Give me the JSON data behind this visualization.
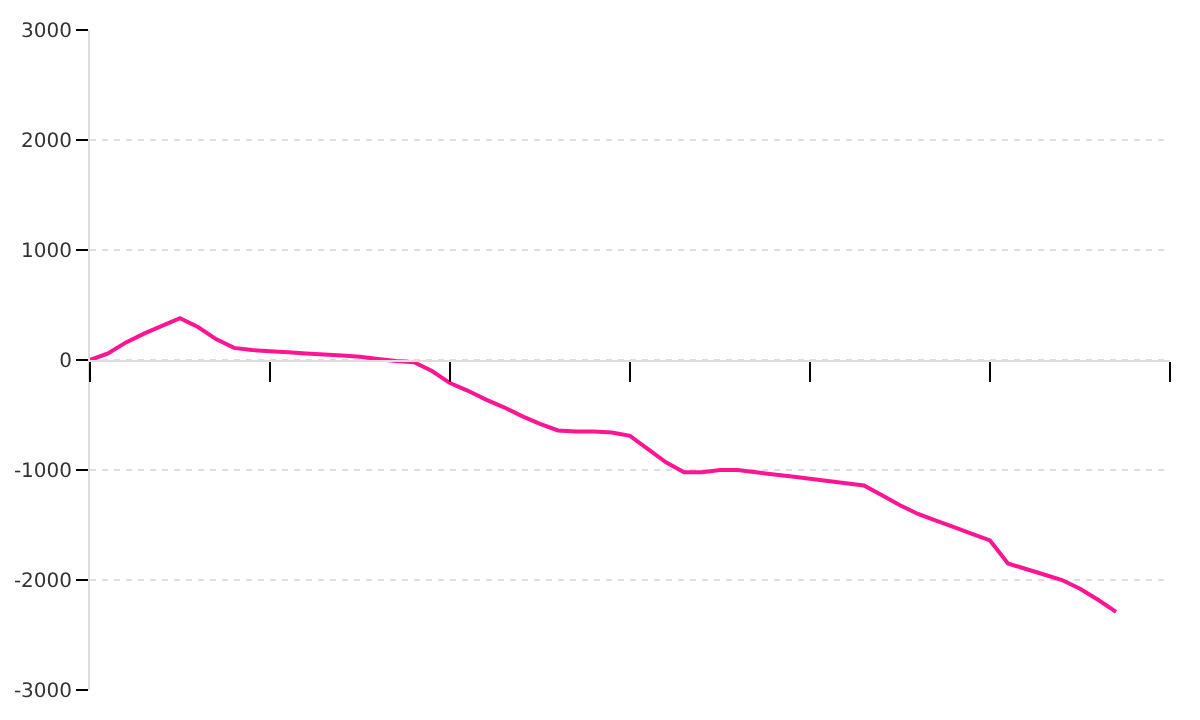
{
  "chart_data": {
    "type": "line",
    "categories": [
      null,
      null,
      null,
      null,
      null,
      null,
      null,
      null,
      null,
      null,
      null,
      null,
      null,
      null,
      null,
      null,
      null,
      null,
      null,
      null,
      null,
      null,
      null,
      null,
      null,
      null,
      null,
      null,
      null,
      null,
      null,
      null,
      null,
      null,
      null,
      null,
      null,
      null,
      null,
      null,
      null,
      null,
      null,
      null,
      null,
      null,
      null,
      null,
      null,
      null,
      null,
      null,
      null,
      null,
      null,
      null,
      null,
      null,
      null,
      null,
      null
    ],
    "series": [
      {
        "color": "#ff1493",
        "values": [
          0,
          60,
          160,
          240,
          310,
          380,
          300,
          190,
          110,
          90,
          80,
          70,
          60,
          50,
          40,
          30,
          10,
          -10,
          -20,
          -100,
          -210,
          -280,
          -360,
          -430,
          -510,
          -580,
          -640,
          -650,
          -650,
          -660,
          -690,
          -810,
          -930,
          -1020,
          -1020,
          -1000,
          -1000,
          -1020,
          -1040,
          -1060,
          -1080,
          -1100,
          -1120,
          -1140,
          -1230,
          -1320,
          -1400,
          -1460,
          -1520,
          -1580,
          -1640,
          -1850,
          -1900,
          -1950,
          -2000,
          -2080,
          -2180,
          -2290,
          null,
          null,
          null
        ]
      }
    ],
    "ylim": [
      -3000,
      3000
    ],
    "yticks": [
      -3000,
      -2000,
      -1000,
      0,
      1000,
      2000,
      3000
    ],
    "grid": "y",
    "tick_labels": "y",
    "marker": "none",
    "line_style": "solid"
  }
}
